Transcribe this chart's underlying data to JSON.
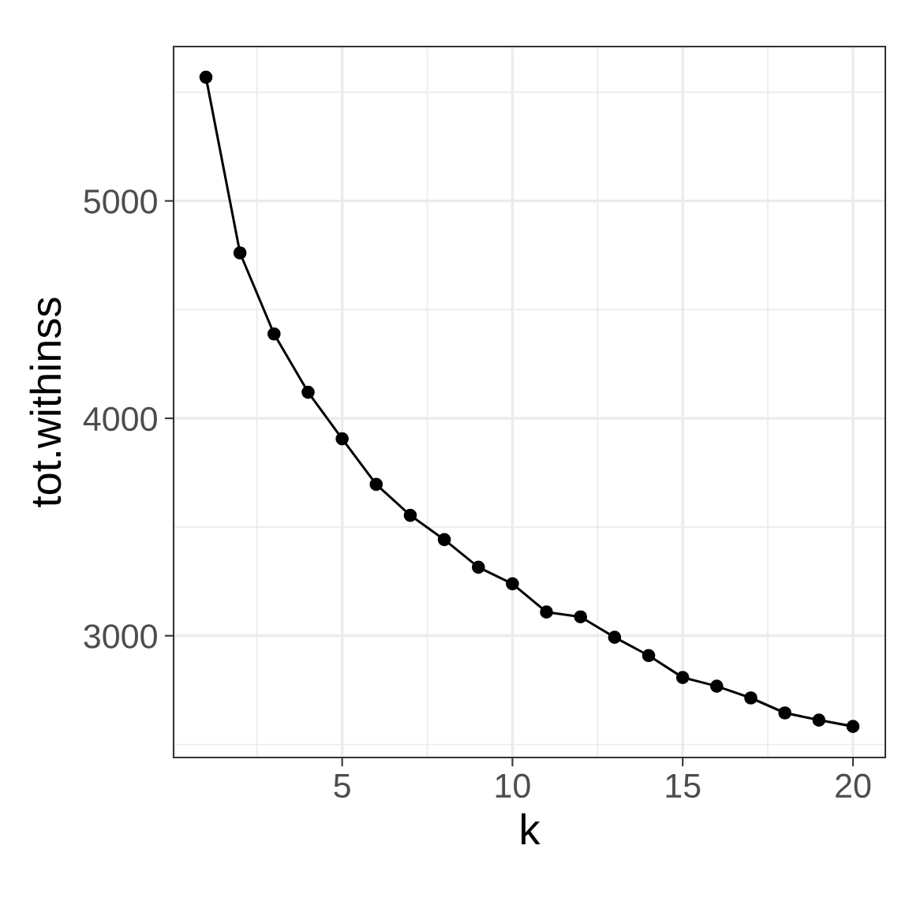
{
  "chart_data": {
    "type": "line",
    "xlabel": "k",
    "ylabel": "tot.withinss",
    "x": [
      1,
      2,
      3,
      4,
      5,
      6,
      7,
      8,
      9,
      10,
      11,
      12,
      13,
      14,
      15,
      16,
      17,
      18,
      19,
      20
    ],
    "series": [
      {
        "color": "#000000",
        "values": [
          5569,
          4761,
          4388,
          4120,
          3906,
          3696,
          3554,
          3442,
          3315,
          3239,
          3109,
          3087,
          2993,
          2909,
          2808,
          2768,
          2714,
          2645,
          2612,
          2583
        ]
      }
    ],
    "xlim": [
      0.05,
      20.95
    ],
    "ylim": [
      2440,
      5710
    ],
    "xticks": [
      5,
      10,
      15,
      20
    ],
    "yticks": [
      3000,
      4000,
      5000
    ],
    "grid": true,
    "marker": "circle",
    "line_style": "solid"
  }
}
